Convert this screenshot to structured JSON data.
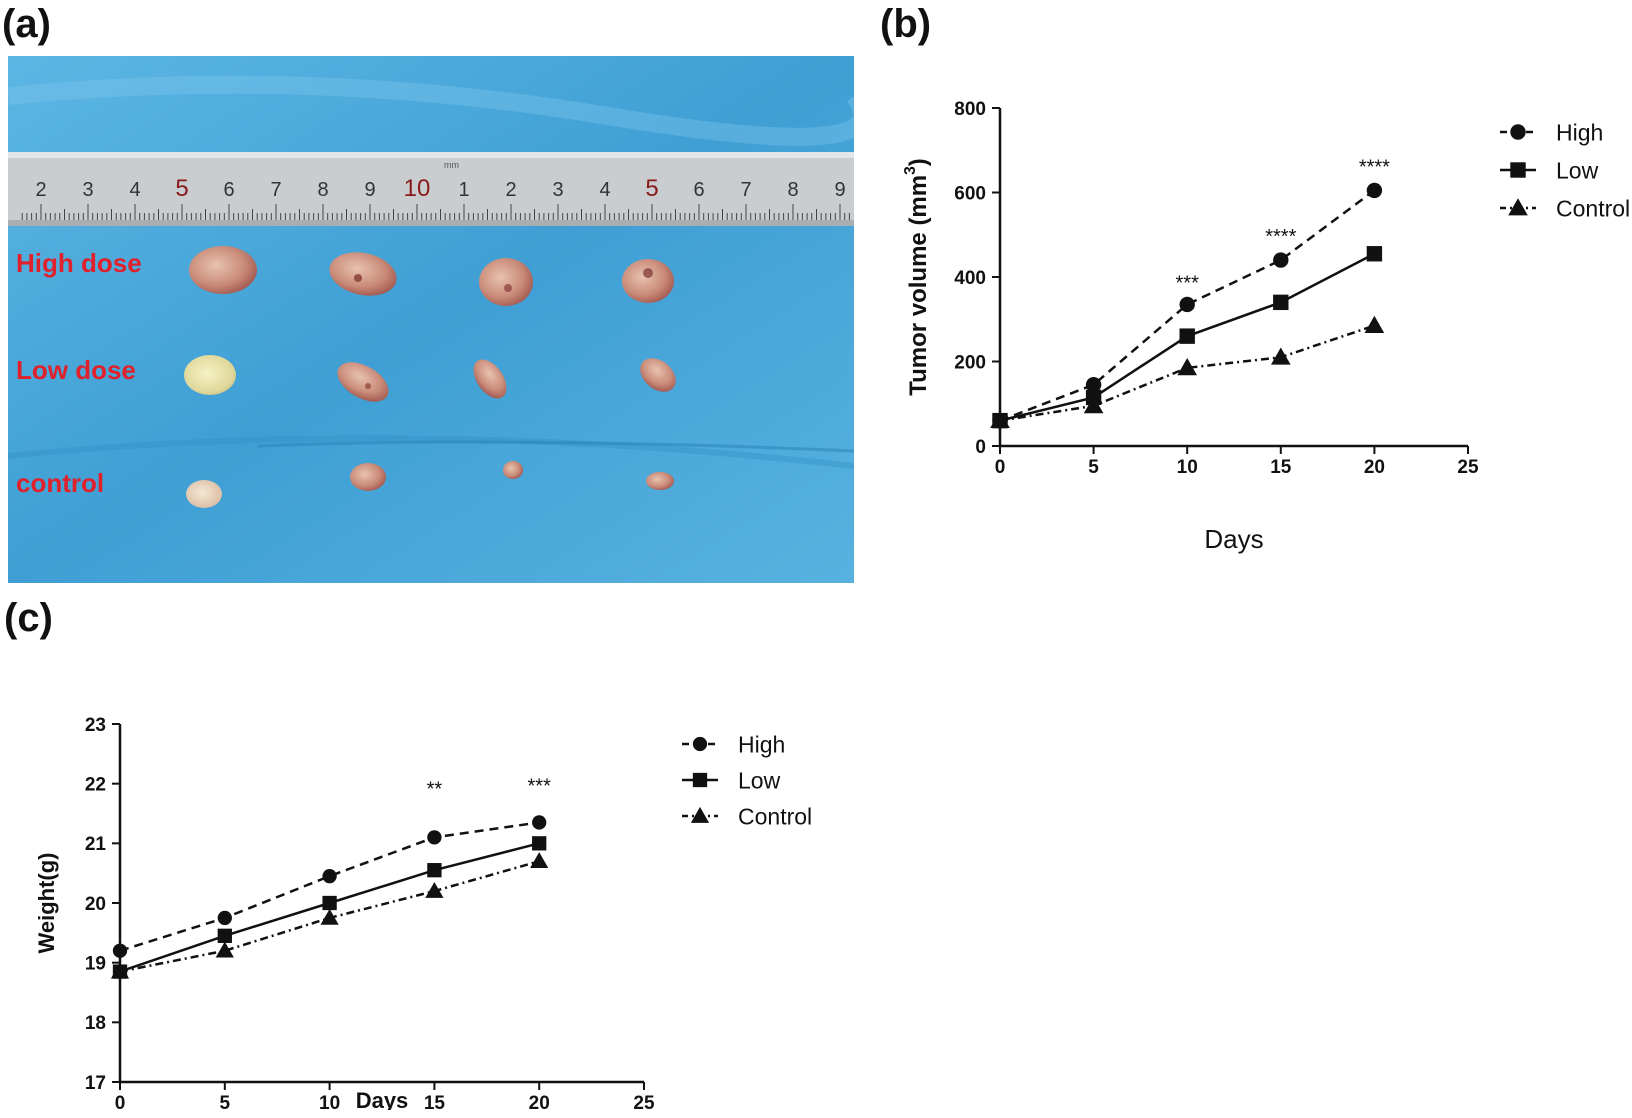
{
  "panels": {
    "a": "(a)",
    "b": "(b)",
    "c": "(c)"
  },
  "photo": {
    "row_labels": [
      "High dose",
      "Low dose",
      "control"
    ],
    "ruler_numbers": [
      "2",
      "3",
      "4",
      "5",
      "6",
      "7",
      "8",
      "9",
      "10",
      "1",
      "2",
      "3",
      "4",
      "5",
      "6",
      "7",
      "8",
      "9"
    ],
    "ruler_unit": "mm",
    "colors": {
      "background": "#4aa8d8",
      "ruler": "#c9cdd0",
      "label": "#e0202a",
      "tumor": "#c88a78"
    }
  },
  "chart_data": [
    {
      "id": "b",
      "type": "line",
      "title": "",
      "xlabel": "Days",
      "ylabel": "Tumor volume  (mm",
      "ylabel_sup": "3",
      "ylabel_close": ")",
      "xlim": [
        0,
        25
      ],
      "ylim": [
        0,
        800
      ],
      "xticks": [
        0,
        5,
        10,
        15,
        20,
        25
      ],
      "yticks": [
        0,
        200,
        400,
        600,
        800
      ],
      "x": [
        0,
        5,
        10,
        15,
        20
      ],
      "series": [
        {
          "name": "High",
          "marker": "circle",
          "line": "dashed",
          "values": [
            60,
            145,
            335,
            440,
            605
          ]
        },
        {
          "name": "Low",
          "marker": "square",
          "line": "solid",
          "values": [
            60,
            115,
            260,
            340,
            455
          ]
        },
        {
          "name": "Control",
          "marker": "triangle",
          "line": "dashdot",
          "values": [
            60,
            95,
            185,
            210,
            285
          ]
        }
      ],
      "annotations": [
        {
          "x": 10,
          "text": "***",
          "y": 370
        },
        {
          "x": 15,
          "text": "****",
          "y": 480
        },
        {
          "x": 20,
          "text": "****",
          "y": 645
        }
      ],
      "legend_position": "top-right"
    },
    {
      "id": "c",
      "type": "line",
      "title": "",
      "xlabel": "Days",
      "ylabel": "Weight(g)",
      "xlim": [
        0,
        25
      ],
      "ylim": [
        17,
        23
      ],
      "xticks": [
        0,
        5,
        10,
        15,
        20,
        25
      ],
      "yticks": [
        17,
        18,
        19,
        20,
        21,
        22,
        23
      ],
      "x": [
        0,
        5,
        10,
        15,
        20
      ],
      "series": [
        {
          "name": "High",
          "marker": "circle",
          "line": "dashed",
          "values": [
            19.2,
            19.75,
            20.45,
            21.1,
            21.35
          ]
        },
        {
          "name": "Low",
          "marker": "square",
          "line": "solid",
          "values": [
            18.85,
            19.45,
            20.0,
            20.55,
            21.0
          ]
        },
        {
          "name": "Control",
          "marker": "triangle",
          "line": "dashdot",
          "values": [
            18.85,
            19.2,
            19.75,
            20.2,
            20.7
          ]
        }
      ],
      "annotations": [
        {
          "x": 15,
          "text": "**",
          "y": 21.8
        },
        {
          "x": 20,
          "text": "***",
          "y": 21.85
        }
      ],
      "legend_position": "right"
    }
  ]
}
